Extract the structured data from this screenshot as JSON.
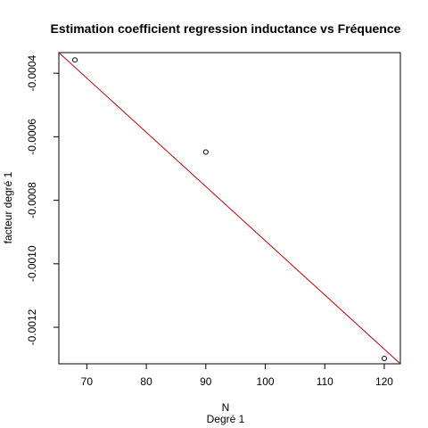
{
  "chart_data": {
    "type": "scatter",
    "title": "Estimation coefficient regression inductance vs Fréquence",
    "xlabel": "N",
    "xsublabel": "Degré 1",
    "ylabel": "facteur degré 1",
    "xlim": [
      65.3,
      122.7
    ],
    "ylim": [
      -0.001315,
      -0.000335
    ],
    "x_ticks": [
      70,
      80,
      90,
      100,
      110,
      120
    ],
    "y_ticks": [
      -0.0004,
      -0.0006,
      -0.0008,
      -0.001,
      -0.0012
    ],
    "x_tick_labels": [
      "70",
      "80",
      "90",
      "100",
      "110",
      "120"
    ],
    "y_tick_labels": [
      "-0.0004",
      "-0.0006",
      "-0.0008",
      "-0.0010",
      "-0.0012"
    ],
    "points": [
      {
        "x": 68,
        "y": -0.000358
      },
      {
        "x": 90,
        "y": -0.000648
      },
      {
        "x": 120,
        "y": -0.001298
      }
    ],
    "fit_line": {
      "x0": 65.3,
      "y0": -0.000335,
      "x1": 122.7,
      "y1": -0.001315
    },
    "point_color": "#000000",
    "line_color": "#cc0000",
    "grid": false
  }
}
